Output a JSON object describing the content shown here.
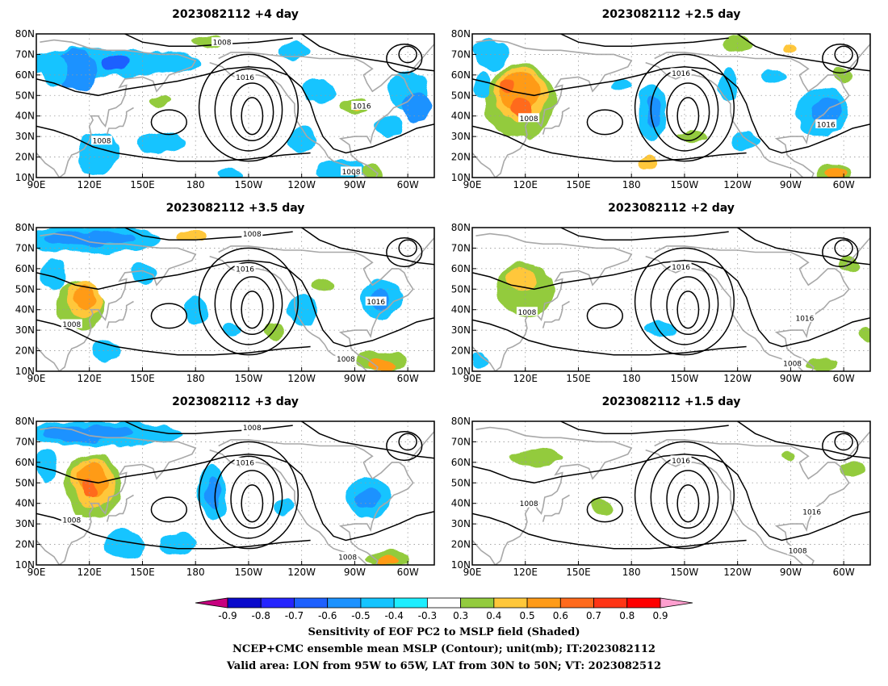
{
  "chart_data": {
    "type": "heatmap",
    "description_fields": {
      "shaded_field": "Sensitivity of EOF PC2 to MSLP field (Shaded)",
      "contour_field": "NCEP+CMC ensemble mean MSLP (Contour); unit(mb); IT:2023082112",
      "valid_area": "Valid area: LON from 95W to 65W, LAT from 30N to 50N; VT: 2023082512"
    },
    "x_ticks": [
      "90E",
      "120E",
      "150E",
      "180",
      "150W",
      "120W",
      "90W",
      "60W"
    ],
    "x_tick_lon": [
      90,
      120,
      150,
      180,
      210,
      240,
      270,
      300
    ],
    "y_ticks": [
      "10N",
      "20N",
      "30N",
      "40N",
      "50N",
      "60N",
      "70N",
      "80N"
    ],
    "y_tick_lat": [
      10,
      20,
      30,
      40,
      50,
      60,
      70,
      80
    ],
    "xlim": [
      90,
      315
    ],
    "ylim": [
      10,
      80
    ],
    "grid": true,
    "colorbar": {
      "tick_labels": [
        "-0.9",
        "-0.8",
        "-0.7",
        "-0.6",
        "-0.5",
        "-0.4",
        "-0.3",
        "0.3",
        "0.4",
        "0.5",
        "0.6",
        "0.7",
        "0.8",
        "0.9"
      ],
      "colors": [
        "#c7007f",
        "#0a0acb",
        "#2525ff",
        "#1d60ff",
        "#1c92ff",
        "#14c4ff",
        "#1eeeff",
        "#ffffff",
        "#93cb3e",
        "#ffc73a",
        "#ff9b18",
        "#ff6a1c",
        "#ff3515",
        "#ff0000",
        "#ff9fcf"
      ]
    },
    "contour_labels": [
      "1008",
      "1016"
    ],
    "panels": [
      {
        "title": "2023082112 +4 day",
        "contour_labels": [
          {
            "text": "1008",
            "lon": 195,
            "lat": 76
          },
          {
            "text": "1016",
            "lon": 208,
            "lat": 59
          },
          {
            "text": "1016",
            "lon": 274,
            "lat": 45
          },
          {
            "text": "1008",
            "lon": 127,
            "lat": 28
          },
          {
            "text": "1008",
            "lon": 268,
            "lat": 13
          }
        ],
        "blobs": [
          {
            "lon": 128,
            "lat": 66,
            "rx": 55,
            "ry": 7,
            "v": -0.4
          },
          {
            "lon": 112,
            "lat": 62,
            "rx": 12,
            "ry": 10,
            "v": -0.5
          },
          {
            "lon": 135,
            "lat": 66,
            "rx": 8,
            "ry": 4,
            "v": -0.6
          },
          {
            "lon": 100,
            "lat": 62,
            "rx": 8,
            "ry": 8,
            "v": -0.4
          },
          {
            "lon": 186,
            "lat": 76,
            "rx": 10,
            "ry": 3,
            "v": 0.4
          },
          {
            "lon": 235,
            "lat": 72,
            "rx": 10,
            "ry": 4,
            "v": -0.4
          },
          {
            "lon": 300,
            "lat": 52,
            "rx": 12,
            "ry": 10,
            "v": -0.4
          },
          {
            "lon": 305,
            "lat": 45,
            "rx": 8,
            "ry": 8,
            "v": -0.5
          },
          {
            "lon": 270,
            "lat": 45,
            "rx": 8,
            "ry": 4,
            "v": 0.4
          },
          {
            "lon": 270,
            "lat": 45,
            "rx": 4,
            "ry": 2,
            "v": 0.5
          },
          {
            "lon": 290,
            "lat": 35,
            "rx": 8,
            "ry": 5,
            "v": -0.4
          },
          {
            "lon": 250,
            "lat": 52,
            "rx": 10,
            "ry": 6,
            "v": -0.4
          },
          {
            "lon": 160,
            "lat": 47,
            "rx": 6,
            "ry": 3,
            "v": 0.4
          },
          {
            "lon": 160,
            "lat": 27,
            "rx": 14,
            "ry": 5,
            "v": -0.4
          },
          {
            "lon": 262,
            "lat": 14,
            "rx": 14,
            "ry": 5,
            "v": -0.4
          },
          {
            "lon": 280,
            "lat": 12,
            "rx": 6,
            "ry": 4,
            "v": 0.4
          },
          {
            "lon": 125,
            "lat": 22,
            "rx": 12,
            "ry": 10,
            "v": -0.4
          },
          {
            "lon": 200,
            "lat": 12,
            "rx": 8,
            "ry": 3,
            "v": -0.4
          },
          {
            "lon": 240,
            "lat": 28,
            "rx": 8,
            "ry": 6,
            "v": -0.4
          }
        ]
      },
      {
        "title": "2023082112 +2.5 day",
        "contour_labels": [
          {
            "text": "1016",
            "lon": 208,
            "lat": 61
          },
          {
            "text": "1008",
            "lon": 122,
            "lat": 39
          },
          {
            "text": "1016",
            "lon": 290,
            "lat": 36
          }
        ],
        "blobs": [
          {
            "lon": 117,
            "lat": 47,
            "rx": 20,
            "ry": 18,
            "v": 0.4
          },
          {
            "lon": 117,
            "lat": 50,
            "rx": 15,
            "ry": 13,
            "v": 0.5
          },
          {
            "lon": 116,
            "lat": 52,
            "rx": 11,
            "ry": 9,
            "v": 0.6
          },
          {
            "lon": 118,
            "lat": 44,
            "rx": 6,
            "ry": 5,
            "v": 0.7
          },
          {
            "lon": 110,
            "lat": 55,
            "rx": 4,
            "ry": 3,
            "v": 0.7
          },
          {
            "lon": 100,
            "lat": 70,
            "rx": 10,
            "ry": 8,
            "v": -0.4
          },
          {
            "lon": 96,
            "lat": 55,
            "rx": 5,
            "ry": 6,
            "v": -0.4
          },
          {
            "lon": 192,
            "lat": 42,
            "rx": 8,
            "ry": 14,
            "v": -0.4
          },
          {
            "lon": 192,
            "lat": 42,
            "rx": 4,
            "ry": 8,
            "v": -0.5
          },
          {
            "lon": 175,
            "lat": 55,
            "rx": 6,
            "ry": 3,
            "v": -0.4
          },
          {
            "lon": 288,
            "lat": 42,
            "rx": 14,
            "ry": 12,
            "v": -0.4
          },
          {
            "lon": 290,
            "lat": 43,
            "rx": 8,
            "ry": 6,
            "v": -0.5
          },
          {
            "lon": 295,
            "lat": 12,
            "rx": 10,
            "ry": 5,
            "v": 0.4
          },
          {
            "lon": 296,
            "lat": 12,
            "rx": 6,
            "ry": 3,
            "v": 0.6
          },
          {
            "lon": 260,
            "lat": 60,
            "rx": 8,
            "ry": 4,
            "v": -0.4
          },
          {
            "lon": 300,
            "lat": 60,
            "rx": 6,
            "ry": 4,
            "v": 0.4
          },
          {
            "lon": 240,
            "lat": 75,
            "rx": 8,
            "ry": 4,
            "v": 0.4
          },
          {
            "lon": 270,
            "lat": 73,
            "rx": 4,
            "ry": 2,
            "v": 0.5
          },
          {
            "lon": 215,
            "lat": 30,
            "rx": 8,
            "ry": 3,
            "v": 0.4
          },
          {
            "lon": 190,
            "lat": 17,
            "rx": 5,
            "ry": 4,
            "v": 0.5
          },
          {
            "lon": 235,
            "lat": 55,
            "rx": 5,
            "ry": 8,
            "v": -0.4
          },
          {
            "lon": 245,
            "lat": 28,
            "rx": 8,
            "ry": 5,
            "v": -0.4
          }
        ]
      },
      {
        "title": "2023082112 +3.5 day",
        "contour_labels": [
          {
            "text": "1008",
            "lon": 212,
            "lat": 77
          },
          {
            "text": "1016",
            "lon": 208,
            "lat": 60
          },
          {
            "text": "1016",
            "lon": 282,
            "lat": 44
          },
          {
            "text": "1008",
            "lon": 110,
            "lat": 33
          },
          {
            "text": "1008",
            "lon": 265,
            "lat": 16
          }
        ],
        "blobs": [
          {
            "lon": 120,
            "lat": 74,
            "rx": 40,
            "ry": 7,
            "v": -0.4
          },
          {
            "lon": 120,
            "lat": 75,
            "rx": 25,
            "ry": 4,
            "v": -0.5
          },
          {
            "lon": 115,
            "lat": 42,
            "rx": 14,
            "ry": 12,
            "v": 0.4
          },
          {
            "lon": 118,
            "lat": 45,
            "rx": 10,
            "ry": 9,
            "v": 0.5
          },
          {
            "lon": 118,
            "lat": 46,
            "rx": 6,
            "ry": 6,
            "v": 0.6
          },
          {
            "lon": 100,
            "lat": 57,
            "rx": 8,
            "ry": 8,
            "v": -0.4
          },
          {
            "lon": 178,
            "lat": 76,
            "rx": 8,
            "ry": 3,
            "v": 0.5
          },
          {
            "lon": 150,
            "lat": 58,
            "rx": 8,
            "ry": 5,
            "v": -0.4
          },
          {
            "lon": 240,
            "lat": 40,
            "rx": 8,
            "ry": 8,
            "v": -0.4
          },
          {
            "lon": 285,
            "lat": 45,
            "rx": 12,
            "ry": 10,
            "v": -0.4
          },
          {
            "lon": 285,
            "lat": 45,
            "rx": 6,
            "ry": 5,
            "v": -0.5
          },
          {
            "lon": 285,
            "lat": 15,
            "rx": 14,
            "ry": 5,
            "v": 0.4
          },
          {
            "lon": 285,
            "lat": 13,
            "rx": 8,
            "ry": 3,
            "v": 0.6
          },
          {
            "lon": 200,
            "lat": 30,
            "rx": 6,
            "ry": 3,
            "v": -0.4
          },
          {
            "lon": 130,
            "lat": 20,
            "rx": 8,
            "ry": 6,
            "v": -0.4
          },
          {
            "lon": 225,
            "lat": 30,
            "rx": 5,
            "ry": 4,
            "v": 0.4
          },
          {
            "lon": 253,
            "lat": 52,
            "rx": 6,
            "ry": 3,
            "v": 0.4
          },
          {
            "lon": 180,
            "lat": 40,
            "rx": 6,
            "ry": 8,
            "v": -0.4
          }
        ]
      },
      {
        "title": "2023082112 +2 day",
        "contour_labels": [
          {
            "text": "1016",
            "lon": 208,
            "lat": 61
          },
          {
            "text": "1008",
            "lon": 121,
            "lat": 39
          },
          {
            "text": "1016",
            "lon": 278,
            "lat": 36
          },
          {
            "text": "1008",
            "lon": 271,
            "lat": 14
          }
        ],
        "blobs": [
          {
            "lon": 120,
            "lat": 50,
            "rx": 16,
            "ry": 13,
            "v": 0.4
          },
          {
            "lon": 118,
            "lat": 55,
            "rx": 8,
            "ry": 5,
            "v": 0.5
          },
          {
            "lon": 196,
            "lat": 30,
            "rx": 8,
            "ry": 4,
            "v": -0.4
          },
          {
            "lon": 303,
            "lat": 62,
            "rx": 6,
            "ry": 4,
            "v": 0.4
          },
          {
            "lon": 287,
            "lat": 13,
            "rx": 8,
            "ry": 3,
            "v": 0.4
          },
          {
            "lon": 95,
            "lat": 16,
            "rx": 4,
            "ry": 5,
            "v": -0.4
          },
          {
            "lon": 313,
            "lat": 28,
            "rx": 4,
            "ry": 4,
            "v": 0.4
          }
        ]
      },
      {
        "title": "2023082112 +3 day",
        "contour_labels": [
          {
            "text": "1008",
            "lon": 212,
            "lat": 77
          },
          {
            "text": "1016",
            "lon": 208,
            "lat": 60
          },
          {
            "text": "1008",
            "lon": 110,
            "lat": 32
          },
          {
            "text": "1008",
            "lon": 266,
            "lat": 14
          }
        ],
        "blobs": [
          {
            "lon": 128,
            "lat": 74,
            "rx": 45,
            "ry": 6,
            "v": -0.4
          },
          {
            "lon": 120,
            "lat": 74,
            "rx": 25,
            "ry": 4,
            "v": -0.5
          },
          {
            "lon": 122,
            "lat": 48,
            "rx": 16,
            "ry": 16,
            "v": 0.4
          },
          {
            "lon": 122,
            "lat": 50,
            "rx": 12,
            "ry": 12,
            "v": 0.5
          },
          {
            "lon": 122,
            "lat": 52,
            "rx": 8,
            "ry": 8,
            "v": 0.6
          },
          {
            "lon": 120,
            "lat": 48,
            "rx": 4,
            "ry": 4,
            "v": 0.7
          },
          {
            "lon": 190,
            "lat": 45,
            "rx": 8,
            "ry": 14,
            "v": -0.4
          },
          {
            "lon": 190,
            "lat": 45,
            "rx": 4,
            "ry": 7,
            "v": -0.5
          },
          {
            "lon": 278,
            "lat": 43,
            "rx": 12,
            "ry": 10,
            "v": -0.4
          },
          {
            "lon": 278,
            "lat": 42,
            "rx": 6,
            "ry": 5,
            "v": -0.5
          },
          {
            "lon": 288,
            "lat": 13,
            "rx": 12,
            "ry": 4,
            "v": 0.4
          },
          {
            "lon": 288,
            "lat": 12,
            "rx": 6,
            "ry": 2,
            "v": 0.6
          },
          {
            "lon": 140,
            "lat": 20,
            "rx": 12,
            "ry": 7,
            "v": -0.4
          },
          {
            "lon": 230,
            "lat": 38,
            "rx": 5,
            "ry": 5,
            "v": -0.4
          },
          {
            "lon": 95,
            "lat": 58,
            "rx": 6,
            "ry": 8,
            "v": -0.4
          },
          {
            "lon": 170,
            "lat": 20,
            "rx": 10,
            "ry": 5,
            "v": -0.4
          }
        ]
      },
      {
        "title": "2023082112 +1.5 day",
        "contour_labels": [
          {
            "text": "1016",
            "lon": 208,
            "lat": 61
          },
          {
            "text": "1008",
            "lon": 122,
            "lat": 40
          },
          {
            "text": "1016",
            "lon": 282,
            "lat": 36
          },
          {
            "text": "1008",
            "lon": 274,
            "lat": 17
          }
        ],
        "blobs": [
          {
            "lon": 126,
            "lat": 62,
            "rx": 14,
            "ry": 4,
            "v": 0.4
          },
          {
            "lon": 305,
            "lat": 57,
            "rx": 6,
            "ry": 3,
            "v": 0.4
          },
          {
            "lon": 163,
            "lat": 38,
            "rx": 5,
            "ry": 4,
            "v": 0.4
          },
          {
            "lon": 270,
            "lat": 63,
            "rx": 4,
            "ry": 2,
            "v": 0.4
          }
        ]
      }
    ]
  }
}
